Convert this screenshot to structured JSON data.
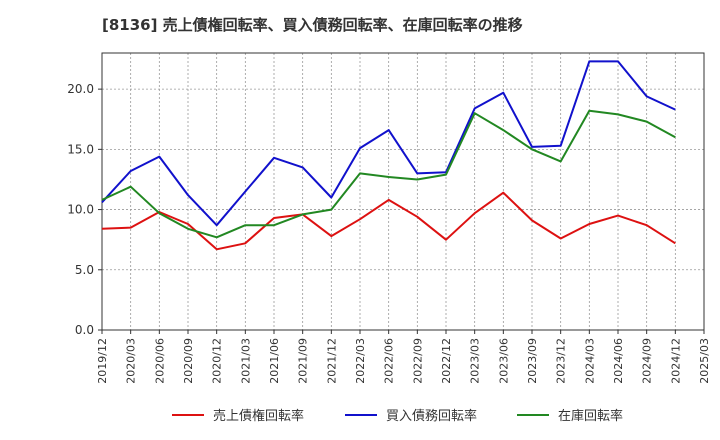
{
  "chart_data": {
    "type": "line",
    "title": "[8136]  売上債権回転率、買入債務回転率、在庫回転率の推移",
    "xlabel": "",
    "ylabel": "",
    "ylim": [
      0,
      23
    ],
    "y_ticks": [
      "0.0",
      "5.0",
      "10.0",
      "15.0",
      "20.0"
    ],
    "y_tick_values": [
      0,
      5,
      10,
      15,
      20
    ],
    "x_tick_labels": [
      "2019/12",
      "2020/03",
      "2020/06",
      "2020/09",
      "2020/12",
      "2021/03",
      "2021/06",
      "2021/09",
      "2021/12",
      "2022/03",
      "2022/06",
      "2022/09",
      "2022/12",
      "2023/03",
      "2023/06",
      "2023/09",
      "2023/12",
      "2024/03",
      "2024/06",
      "2024/09",
      "2024/12",
      "2025/03"
    ],
    "x": [
      "2019/12",
      "2020/03",
      "2020/06",
      "2020/09",
      "2020/12",
      "2021/03",
      "2021/06",
      "2021/09",
      "2021/12",
      "2022/03",
      "2022/06",
      "2022/09",
      "2022/12",
      "2023/03",
      "2023/06",
      "2023/09",
      "2023/12",
      "2024/03",
      "2024/06",
      "2024/09",
      "2024/12"
    ],
    "grid": true,
    "legend_position": "bottom",
    "series": [
      {
        "name": "売上債権回転率",
        "color": "#dd1111",
        "values": [
          8.4,
          8.5,
          9.8,
          8.8,
          6.7,
          7.2,
          9.3,
          9.6,
          7.8,
          9.2,
          10.8,
          9.4,
          7.5,
          9.7,
          11.4,
          9.1,
          7.6,
          8.8,
          9.5,
          8.7,
          7.2
        ]
      },
      {
        "name": "買入債務回転率",
        "color": "#1111cc",
        "values": [
          10.6,
          13.2,
          14.4,
          11.2,
          8.7,
          11.5,
          14.3,
          13.5,
          11.0,
          15.1,
          16.6,
          13.0,
          13.1,
          18.4,
          19.7,
          15.2,
          15.3,
          22.3,
          22.3,
          19.4,
          18.3
        ]
      },
      {
        "name": "在庫回転率",
        "color": "#228822",
        "values": [
          10.8,
          11.9,
          9.7,
          8.4,
          7.7,
          8.7,
          8.7,
          9.6,
          10.0,
          13.0,
          12.7,
          12.5,
          12.9,
          18.0,
          16.6,
          15.0,
          14.0,
          18.2,
          17.9,
          17.3,
          16.0
        ]
      }
    ]
  }
}
